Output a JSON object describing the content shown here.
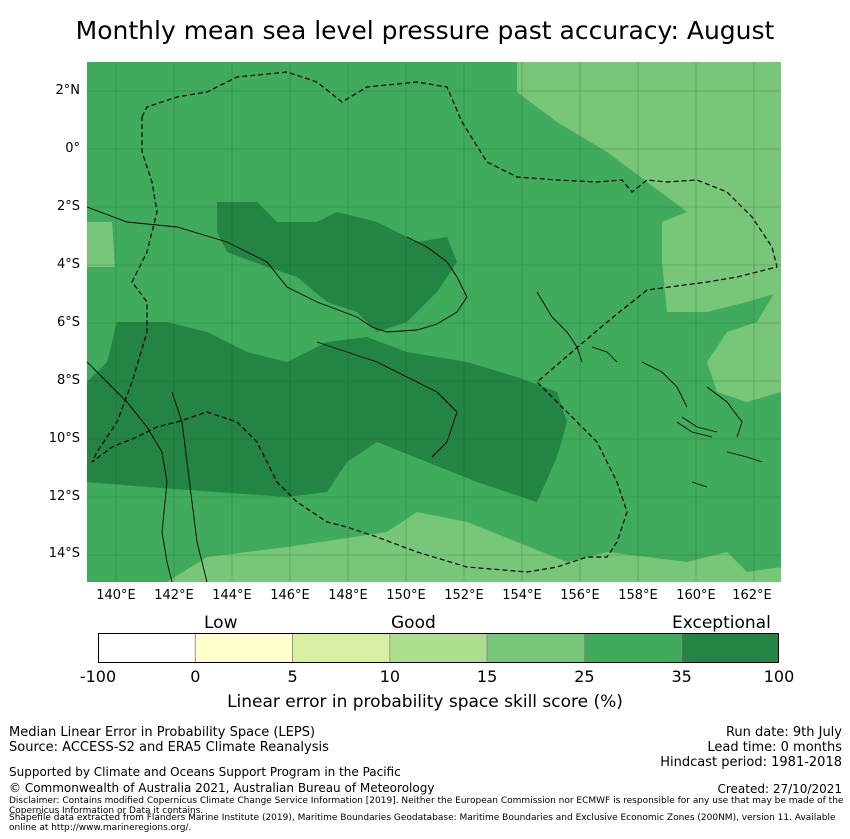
{
  "title": "Monthly mean sea level pressure past accuracy: August",
  "map": {
    "lat_ticks": [
      "2°N",
      "0°",
      "2°S",
      "4°S",
      "6°S",
      "8°S",
      "10°S",
      "12°S",
      "14°S"
    ],
    "lon_ticks": [
      "140°E",
      "142°E",
      "144°E",
      "146°E",
      "148°E",
      "150°E",
      "152°E",
      "154°E",
      "156°E",
      "158°E",
      "160°E",
      "162°E"
    ],
    "base_color": "#41ab5d"
  },
  "colorbar": {
    "categories": [
      "Low",
      "Good",
      "Exceptional"
    ],
    "ticks": [
      "-100",
      "0",
      "5",
      "10",
      "15",
      "25",
      "35",
      "100"
    ],
    "colors": [
      "#ffffff",
      "#ffffcc",
      "#d9f0a3",
      "#addd8e",
      "#78c679",
      "#41ab5d",
      "#238443"
    ],
    "label": "Linear error in probability space skill score (%)"
  },
  "footer": {
    "metric": "Median Linear Error in Probability Space (LEPS)",
    "source": "Source: ACCESS-S2 and ERA5 Climate Reanalysis",
    "supported": "Supported by Climate and Oceans Support Program in the Pacific",
    "copyright": "© Commonwealth of Australia 2021, Australian Bureau of Meteorology",
    "run_date": "Run date: 9th July",
    "lead_time": "Lead time: 0 months",
    "hindcast": "Hindcast period: 1981-2018",
    "created": "Created: 27/10/2021",
    "disclaimer": "Disclaimer: Contains modified Copernicus Climate Change Service Information [2019]. Neither the European Commission nor ECMWF is responsible for any use that may be made of the Copernicus Information or Data it contains.",
    "shapefile": "Shapefile data extracted from Flanders Marine Institute (2019), Maritime Boundaries Geodatabase: Maritime Boundaries and Exclusive Economic Zones (200NM), version 11. Available online at http://www.marineregions.org/."
  }
}
